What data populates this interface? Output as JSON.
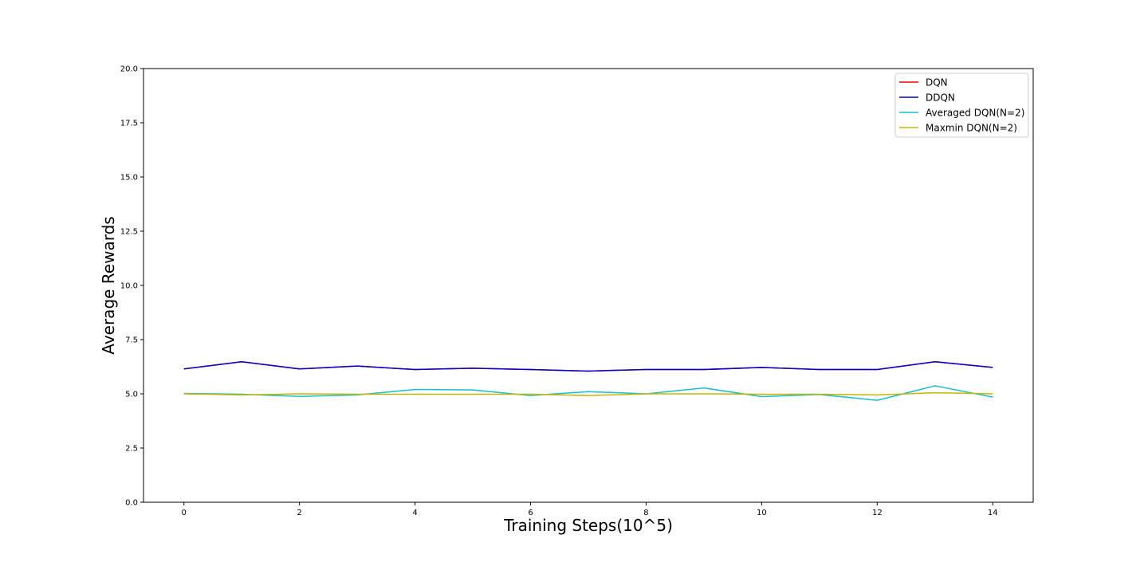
{
  "chart_data": {
    "type": "line",
    "xlabel": "Training Steps(10^5)",
    "ylabel": "Average Rewards",
    "xlim": [
      -0.7,
      14.7
    ],
    "ylim": [
      0,
      20
    ],
    "xticks": [
      0,
      2,
      4,
      6,
      8,
      10,
      12,
      14
    ],
    "yticks": [
      0.0,
      2.5,
      5.0,
      7.5,
      10.0,
      12.5,
      15.0,
      17.5,
      20.0
    ],
    "ytick_labels": [
      "0.0",
      "2.5",
      "5.0",
      "7.5",
      "10.0",
      "12.5",
      "15.0",
      "17.5",
      "20.0"
    ],
    "grid": false,
    "legend_position": "top-right",
    "x": [
      0,
      1,
      2,
      3,
      4,
      5,
      6,
      7,
      8,
      9,
      10,
      11,
      12,
      13,
      14
    ],
    "series": [
      {
        "name": "DQN",
        "color": "#ff0000",
        "values": [
          6.15,
          6.48,
          6.15,
          6.28,
          6.12,
          6.18,
          6.12,
          6.05,
          6.12,
          6.12,
          6.22,
          6.12,
          6.12,
          6.48,
          6.22
        ]
      },
      {
        "name": "DDQN",
        "color": "#0000cc",
        "values": [
          6.15,
          6.48,
          6.15,
          6.28,
          6.12,
          6.18,
          6.12,
          6.05,
          6.12,
          6.12,
          6.22,
          6.12,
          6.12,
          6.48,
          6.22
        ]
      },
      {
        "name": "Averaged DQN(N=2)",
        "color": "#17becf",
        "values": [
          5.02,
          4.98,
          4.88,
          4.95,
          5.2,
          5.18,
          4.92,
          5.1,
          5.0,
          5.27,
          4.87,
          4.97,
          4.7,
          5.37,
          4.85
        ]
      },
      {
        "name": "Maxmin DQN(N=2)",
        "color": "#c8b400",
        "values": [
          5.0,
          4.95,
          5.0,
          4.98,
          4.98,
          4.98,
          4.98,
          4.92,
          5.0,
          5.0,
          4.98,
          4.98,
          4.95,
          5.05,
          5.0
        ]
      }
    ]
  }
}
